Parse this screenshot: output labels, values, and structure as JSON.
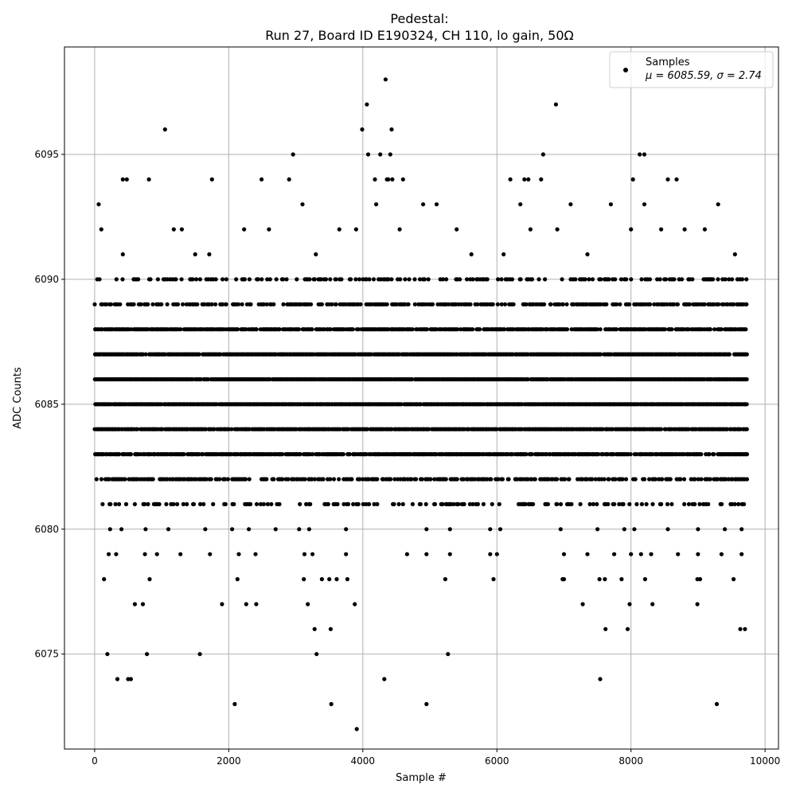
{
  "chart_data": {
    "type": "scatter",
    "title": "Pedestal:",
    "subtitle": "Run 27, Board ID E190324, CH 110, lo gain, 50Ω",
    "xlabel": "Sample #",
    "ylabel": "ADC Counts",
    "xlim": [
      -450,
      10200
    ],
    "ylim": [
      6071.2,
      6099.3
    ],
    "xticks": [
      0,
      2000,
      4000,
      6000,
      8000,
      10000
    ],
    "yticks": [
      6075,
      6080,
      6085,
      6090,
      6095
    ],
    "grid": true,
    "legend_position": "top-right",
    "marker_color": "#000000",
    "series": [
      {
        "name": "Samples",
        "stats_label": "μ = 6085.59, σ = 2.74",
        "mean": 6085.59,
        "std": 2.74,
        "n_samples": 9720,
        "band_levels": [
          6081,
          6082,
          6083,
          6084,
          6085,
          6086,
          6087,
          6088,
          6089,
          6090
        ],
        "band_x_range": [
          0,
          9720
        ],
        "sparse_points": [
          [
            100,
            6092
          ],
          [
            60,
            6093
          ],
          [
            420,
            6091
          ],
          [
            1180,
            6092
          ],
          [
            1300,
            6092
          ],
          [
            1500,
            6091
          ],
          [
            1710,
            6091
          ],
          [
            2230,
            6092
          ],
          [
            2600,
            6092
          ],
          [
            3100,
            6093
          ],
          [
            3300,
            6091
          ],
          [
            3650,
            6092
          ],
          [
            3900,
            6092
          ],
          [
            4200,
            6093
          ],
          [
            4380,
            6094
          ],
          [
            4550,
            6092
          ],
          [
            4900,
            6093
          ],
          [
            5100,
            6093
          ],
          [
            5400,
            6092
          ],
          [
            5620,
            6091
          ],
          [
            6100,
            6091
          ],
          [
            6350,
            6093
          ],
          [
            6500,
            6092
          ],
          [
            6900,
            6092
          ],
          [
            7100,
            6093
          ],
          [
            7350,
            6091
          ],
          [
            7700,
            6093
          ],
          [
            8000,
            6092
          ],
          [
            8200,
            6093
          ],
          [
            8450,
            6092
          ],
          [
            8800,
            6092
          ],
          [
            9100,
            6092
          ],
          [
            9300,
            6093
          ],
          [
            9550,
            6091
          ],
          [
            230,
            6080
          ],
          [
            400,
            6080
          ],
          [
            760,
            6080
          ],
          [
            1100,
            6080
          ],
          [
            1650,
            6080
          ],
          [
            2050,
            6080
          ],
          [
            2300,
            6080
          ],
          [
            2700,
            6080
          ],
          [
            3050,
            6080
          ],
          [
            3200,
            6080
          ],
          [
            3750,
            6080
          ],
          [
            4050,
            6081
          ],
          [
            4600,
            6081
          ],
          [
            4950,
            6080
          ],
          [
            5300,
            6080
          ],
          [
            5900,
            6080
          ],
          [
            6050,
            6080
          ],
          [
            6950,
            6080
          ],
          [
            7500,
            6080
          ],
          [
            7900,
            6080
          ],
          [
            8050,
            6080
          ],
          [
            8550,
            6080
          ],
          [
            9000,
            6080
          ],
          [
            9400,
            6080
          ],
          [
            9650,
            6080
          ],
          [
            210,
            6079
          ],
          [
            320,
            6079
          ],
          [
            750,
            6079
          ],
          [
            930,
            6079
          ],
          [
            1280,
            6079
          ],
          [
            1720,
            6079
          ],
          [
            2150,
            6079
          ],
          [
            2400,
            6079
          ],
          [
            3130,
            6079
          ],
          [
            3250,
            6079
          ],
          [
            3750,
            6079
          ],
          [
            4660,
            6079
          ],
          [
            4950,
            6079
          ],
          [
            5300,
            6079
          ],
          [
            5900,
            6079
          ],
          [
            6000,
            6079
          ],
          [
            7000,
            6079
          ],
          [
            7350,
            6079
          ],
          [
            7750,
            6079
          ],
          [
            8000,
            6079
          ],
          [
            8150,
            6079
          ],
          [
            8300,
            6079
          ],
          [
            8700,
            6079
          ],
          [
            9000,
            6079
          ],
          [
            9350,
            6079
          ],
          [
            9650,
            6079
          ],
          [
            2960,
            6095
          ],
          [
            4080,
            6095
          ],
          [
            4260,
            6095
          ],
          [
            4410,
            6095
          ],
          [
            6690,
            6095
          ],
          [
            8130,
            6095
          ],
          [
            8200,
            6095
          ],
          [
            420,
            6094
          ],
          [
            480,
            6094
          ],
          [
            810,
            6094
          ],
          [
            1750,
            6094
          ],
          [
            2490,
            6094
          ],
          [
            2900,
            6094
          ],
          [
            4180,
            6094
          ],
          [
            4360,
            6094
          ],
          [
            4440,
            6094
          ],
          [
            4600,
            6094
          ],
          [
            6200,
            6094
          ],
          [
            6410,
            6094
          ],
          [
            6470,
            6094
          ],
          [
            6660,
            6094
          ],
          [
            8030,
            6094
          ],
          [
            8550,
            6094
          ],
          [
            8680,
            6094
          ],
          [
            1050,
            6096
          ],
          [
            3990,
            6096
          ],
          [
            4430,
            6096
          ],
          [
            4060,
            6097
          ],
          [
            6880,
            6097
          ],
          [
            4340,
            6098
          ],
          [
            140,
            6078
          ],
          [
            820,
            6078
          ],
          [
            2130,
            6078
          ],
          [
            3120,
            6078
          ],
          [
            3390,
            6078
          ],
          [
            3500,
            6078
          ],
          [
            3610,
            6078
          ],
          [
            3770,
            6078
          ],
          [
            5230,
            6078
          ],
          [
            5950,
            6078
          ],
          [
            6980,
            6078
          ],
          [
            7000,
            6078
          ],
          [
            7530,
            6078
          ],
          [
            7610,
            6078
          ],
          [
            7860,
            6078
          ],
          [
            8210,
            6078
          ],
          [
            8990,
            6078
          ],
          [
            9030,
            6078
          ],
          [
            9530,
            6078
          ],
          [
            600,
            6077
          ],
          [
            720,
            6077
          ],
          [
            1900,
            6077
          ],
          [
            2260,
            6077
          ],
          [
            2410,
            6077
          ],
          [
            3180,
            6077
          ],
          [
            3880,
            6077
          ],
          [
            7280,
            6077
          ],
          [
            7980,
            6077
          ],
          [
            8320,
            6077
          ],
          [
            8990,
            6077
          ],
          [
            3280,
            6076
          ],
          [
            3520,
            6076
          ],
          [
            7620,
            6076
          ],
          [
            7950,
            6076
          ],
          [
            9630,
            6076
          ],
          [
            9700,
            6076
          ],
          [
            190,
            6075
          ],
          [
            780,
            6075
          ],
          [
            1570,
            6075
          ],
          [
            3310,
            6075
          ],
          [
            5270,
            6075
          ],
          [
            340,
            6074
          ],
          [
            500,
            6074
          ],
          [
            540,
            6074
          ],
          [
            4320,
            6074
          ],
          [
            7540,
            6074
          ],
          [
            2090,
            6073
          ],
          [
            3530,
            6073
          ],
          [
            4950,
            6073
          ],
          [
            9280,
            6073
          ],
          [
            3910,
            6072
          ]
        ]
      }
    ]
  }
}
